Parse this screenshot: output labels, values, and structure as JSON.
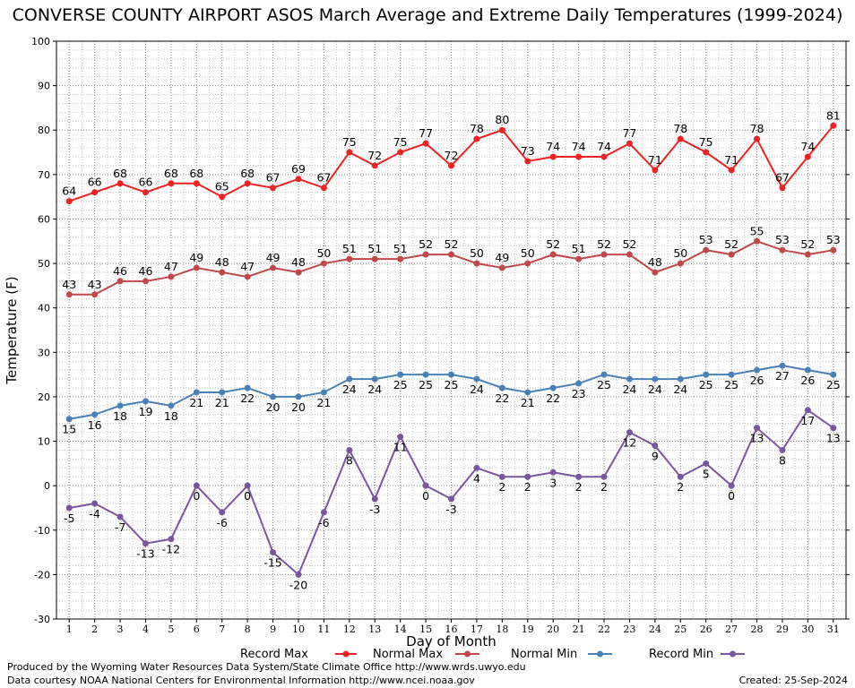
{
  "chart_data": {
    "type": "line",
    "title": "CONVERSE COUNTY AIRPORT ASOS March Average and Extreme Daily Temperatures (1999-2024)",
    "xlabel": "Day of Month",
    "ylabel": "Temperature (F)",
    "x": [
      1,
      2,
      3,
      4,
      5,
      6,
      7,
      8,
      9,
      10,
      11,
      12,
      13,
      14,
      15,
      16,
      17,
      18,
      19,
      20,
      21,
      22,
      23,
      24,
      25,
      26,
      27,
      28,
      29,
      30,
      31
    ],
    "ylim": [
      -30,
      100
    ],
    "yticks": [
      -30,
      -20,
      -10,
      0,
      10,
      20,
      30,
      40,
      50,
      60,
      70,
      80,
      90,
      100
    ],
    "grid": true,
    "legend_position": "bottom",
    "series": [
      {
        "name": "Record Max",
        "color": "#ee2222",
        "label_position": "above",
        "values": [
          64,
          66,
          68,
          66,
          68,
          68,
          65,
          68,
          67,
          69,
          67,
          75,
          72,
          75,
          77,
          72,
          78,
          80,
          73,
          74,
          74,
          74,
          77,
          71,
          78,
          75,
          71,
          78,
          67,
          74,
          81
        ]
      },
      {
        "name": "Normal Max",
        "color": "#c04848",
        "label_position": "above",
        "values": [
          43,
          43,
          46,
          46,
          47,
          49,
          48,
          47,
          49,
          48,
          50,
          51,
          51,
          51,
          52,
          52,
          50,
          49,
          50,
          52,
          51,
          52,
          52,
          48,
          50,
          53,
          52,
          55,
          53,
          52,
          53
        ]
      },
      {
        "name": "Normal Min",
        "color": "#4a80b8",
        "label_position": "below",
        "values": [
          15,
          16,
          18,
          19,
          18,
          21,
          21,
          22,
          20,
          20,
          21,
          24,
          24,
          25,
          25,
          25,
          24,
          22,
          21,
          22,
          23,
          25,
          24,
          24,
          24,
          25,
          25,
          26,
          27,
          26,
          25
        ]
      },
      {
        "name": "Record Min",
        "color": "#7a55a0",
        "label_position": "below",
        "values": [
          -5,
          -4,
          -7,
          -13,
          -12,
          0,
          -6,
          0,
          -15,
          -20,
          -6,
          8,
          -3,
          11,
          0,
          -3,
          4,
          2,
          2,
          3,
          2,
          2,
          12,
          9,
          2,
          5,
          0,
          13,
          8,
          17,
          13
        ]
      }
    ]
  },
  "footer": {
    "produced_by": "Produced by the Wyoming Water Resources Data System/State Climate Office http://www.wrds.uwyo.edu",
    "courtesy": "Data courtesy NOAA National Centers for Environmental Information http://www.ncei.noaa.gov",
    "created": "Created:  25-Sep-2024"
  }
}
